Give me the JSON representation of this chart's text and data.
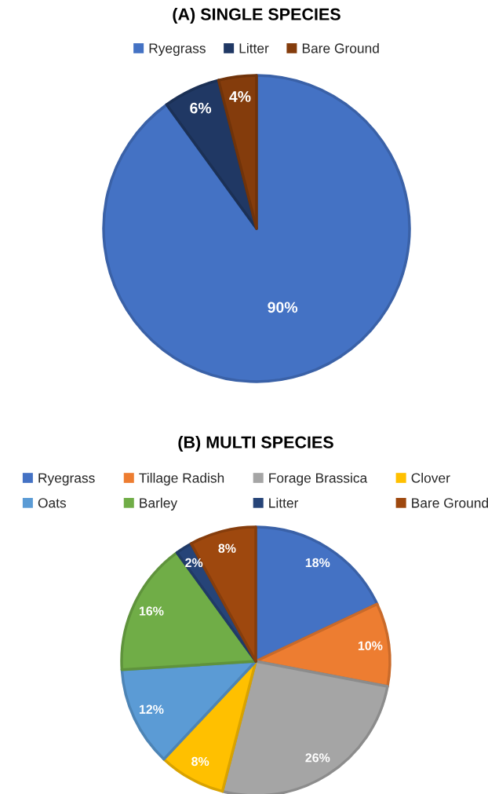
{
  "chart_data": [
    {
      "type": "pie",
      "title": "(A) SINGLE SPECIES",
      "categories": [
        "Ryegrass",
        "Litter",
        "Bare Ground"
      ],
      "values": [
        90,
        6,
        4
      ],
      "colors": [
        "#4472c4",
        "#203864",
        "#843c0c"
      ],
      "value_labels": [
        "90%",
        "6%",
        "4%"
      ],
      "legend": "top"
    },
    {
      "type": "pie",
      "title": "(B) MULTI SPECIES",
      "categories": [
        "Ryegrass",
        "Tillage Radish",
        "Forage Brassica",
        "Clover",
        "Oats",
        "Barley",
        "Litter",
        "Bare Ground"
      ],
      "values": [
        18,
        10,
        26,
        8,
        12,
        16,
        2,
        8
      ],
      "colors": [
        "#4472c4",
        "#ed7d31",
        "#a5a5a5",
        "#ffc000",
        "#5b9bd5",
        "#70ad47",
        "#264478",
        "#9e480e"
      ],
      "value_labels": [
        "18%",
        "10%",
        "26%",
        "8%",
        "12%",
        "16%",
        "2%",
        "8%"
      ],
      "legend": "top"
    }
  ]
}
